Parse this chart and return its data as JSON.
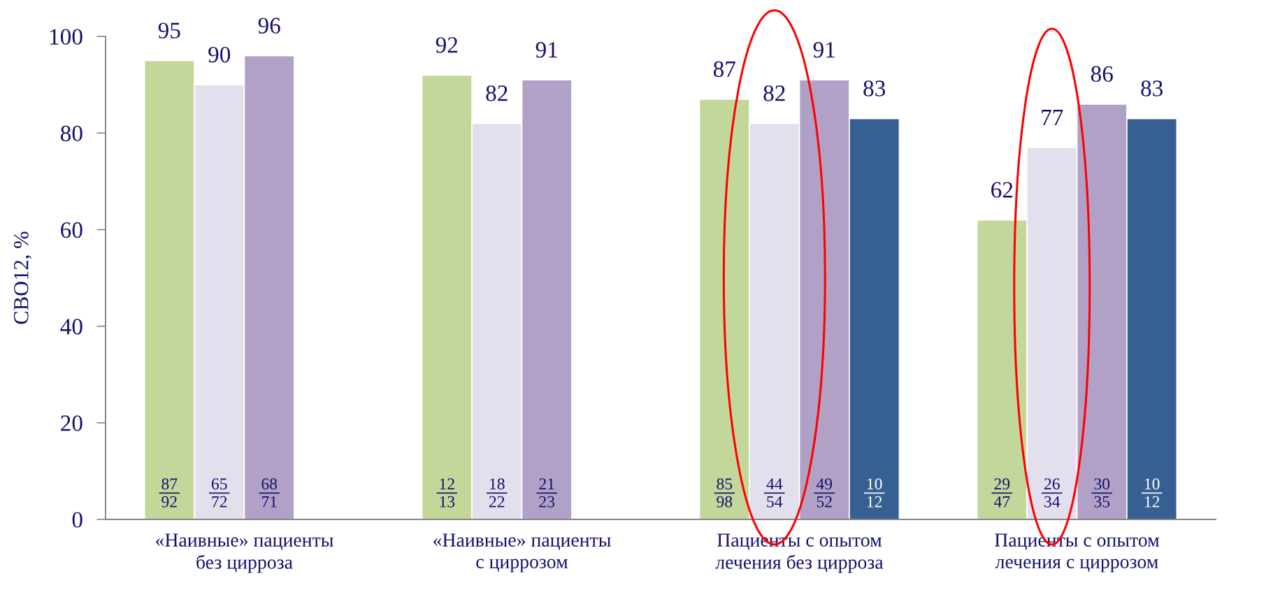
{
  "chart_data": {
    "type": "bar",
    "ylabel": "СВО12, %",
    "categories": [
      "«Наивные» пациенты\nбез цирроза",
      "«Наивные» пациенты\nс циррозом",
      "Пациенты с опытом\nлечения без цирроза",
      "Пациенты с опытом\nлечения с циррозом"
    ],
    "series": [
      {
        "color": "#c4d79b",
        "values": [
          95,
          92,
          87,
          62
        ]
      },
      {
        "color": "#e4dfec",
        "values": [
          90,
          82,
          82,
          77
        ]
      },
      {
        "color": "#b2a1c7",
        "values": [
          96,
          91,
          91,
          86
        ]
      },
      {
        "color": "#366092",
        "values": [
          null,
          null,
          83,
          83
        ]
      }
    ],
    "ylim": [
      0,
      100
    ],
    "yticks": [
      0,
      20,
      40,
      60,
      80,
      100
    ],
    "data_labels": true,
    "annotations": [
      "87\n92",
      "65\n72",
      "68\n71",
      "12\n13",
      "18\n22",
      "21\n23",
      "85\n98",
      "44\n54",
      "49\n52",
      "10\n12",
      "29\n47",
      "26\n34",
      "30\n35",
      "10\n12"
    ]
  }
}
